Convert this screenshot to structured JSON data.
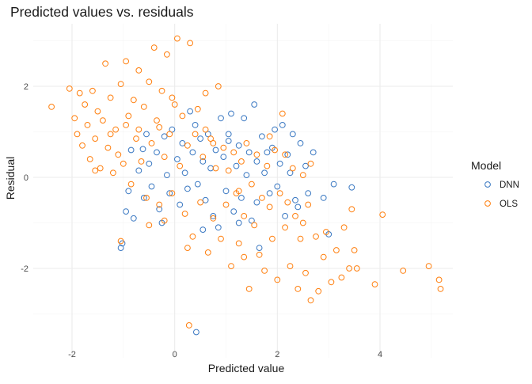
{
  "chart_data": {
    "type": "scatter",
    "title": "Predicted values vs. residuals",
    "xlabel": "Predicted value",
    "ylabel": "Residual",
    "xlim": [
      -2.6,
      5.5
    ],
    "ylim": [
      -3.5,
      3.2
    ],
    "xticks": [
      -2,
      0,
      2,
      4
    ],
    "yticks": [
      -2,
      0,
      2
    ],
    "grid": true,
    "legend": {
      "title": "Model",
      "position": "right"
    },
    "series": [
      {
        "name": "DNN",
        "color": "#3a78c2",
        "points": [
          [
            -1.05,
            -1.55
          ],
          [
            -1.02,
            -1.45
          ],
          [
            -0.95,
            -0.75
          ],
          [
            -0.9,
            -0.3
          ],
          [
            -0.85,
            0.6
          ],
          [
            -0.8,
            -0.9
          ],
          [
            -0.7,
            0.15
          ],
          [
            -0.6,
            -0.45
          ],
          [
            -0.55,
            0.95
          ],
          [
            -0.5,
            0.3
          ],
          [
            -0.45,
            -0.2
          ],
          [
            -0.35,
            0.55
          ],
          [
            -0.3,
            -0.7
          ],
          [
            -0.2,
            0.9
          ],
          [
            -0.15,
            0.05
          ],
          [
            -0.1,
            -0.35
          ],
          [
            -0.05,
            1.05
          ],
          [
            0.05,
            0.4
          ],
          [
            0.1,
            -0.6
          ],
          [
            0.15,
            0.75
          ],
          [
            0.2,
            0.1
          ],
          [
            0.25,
            -0.25
          ],
          [
            0.3,
            1.45
          ],
          [
            0.35,
            0.55
          ],
          [
            0.4,
            1.15
          ],
          [
            0.45,
            -0.15
          ],
          [
            0.5,
            0.85
          ],
          [
            0.55,
            0.35
          ],
          [
            0.6,
            -0.5
          ],
          [
            0.65,
            0.95
          ],
          [
            0.7,
            0.2
          ],
          [
            0.75,
            -0.85
          ],
          [
            0.8,
            0.6
          ],
          [
            0.85,
            -1.1
          ],
          [
            0.9,
            1.3
          ],
          [
            0.95,
            0.45
          ],
          [
            1.0,
            -0.3
          ],
          [
            1.05,
            0.8
          ],
          [
            1.1,
            1.4
          ],
          [
            1.15,
            -0.75
          ],
          [
            1.2,
            0.25
          ],
          [
            1.25,
            0.7
          ],
          [
            1.3,
            -0.45
          ],
          [
            1.35,
            1.3
          ],
          [
            1.4,
            0.05
          ],
          [
            1.45,
            0.55
          ],
          [
            1.5,
            -0.95
          ],
          [
            1.55,
            1.6
          ],
          [
            1.6,
            0.35
          ],
          [
            1.65,
            -1.55
          ],
          [
            1.7,
            0.9
          ],
          [
            1.75,
            0.1
          ],
          [
            1.8,
            0.55
          ],
          [
            1.85,
            -0.35
          ],
          [
            1.9,
            0.65
          ],
          [
            1.95,
            1.05
          ],
          [
            2.0,
            -0.2
          ],
          [
            2.05,
            0.3
          ],
          [
            2.1,
            1.15
          ],
          [
            2.15,
            -0.85
          ],
          [
            2.2,
            0.5
          ],
          [
            2.25,
            0.1
          ],
          [
            2.3,
            0.95
          ],
          [
            2.35,
            -0.5
          ],
          [
            2.45,
            0.75
          ],
          [
            2.55,
            0.25
          ],
          [
            2.6,
            -0.35
          ],
          [
            2.7,
            0.55
          ],
          [
            2.9,
            -0.45
          ],
          [
            3.0,
            -1.25
          ],
          [
            3.1,
            -0.15
          ],
          [
            3.45,
            -0.22
          ],
          [
            2.4,
            -0.65
          ],
          [
            1.25,
            -1.0
          ],
          [
            0.55,
            -1.15
          ],
          [
            0.42,
            -3.4
          ],
          [
            -0.25,
            -1.0
          ],
          [
            -0.62,
            0.62
          ],
          [
            1.05,
            0.95
          ],
          [
            1.6,
            -0.55
          ]
        ]
      },
      {
        "name": "OLS",
        "color": "#ff7f0e",
        "points": [
          [
            -2.4,
            1.55
          ],
          [
            -2.05,
            1.95
          ],
          [
            -1.95,
            1.3
          ],
          [
            -1.9,
            0.95
          ],
          [
            -1.85,
            1.85
          ],
          [
            -1.8,
            0.7
          ],
          [
            -1.75,
            1.6
          ],
          [
            -1.7,
            1.15
          ],
          [
            -1.65,
            0.4
          ],
          [
            -1.6,
            1.9
          ],
          [
            -1.55,
            0.85
          ],
          [
            -1.5,
            1.45
          ],
          [
            -1.45,
            0.2
          ],
          [
            -1.4,
            1.25
          ],
          [
            -1.35,
            2.5
          ],
          [
            -1.3,
            0.65
          ],
          [
            -1.25,
            1.75
          ],
          [
            -1.2,
            0.1
          ],
          [
            -1.15,
            1.05
          ],
          [
            -1.1,
            0.5
          ],
          [
            -1.05,
            2.05
          ],
          [
            -1.0,
            0.3
          ],
          [
            -0.95,
            2.55
          ],
          [
            -0.9,
            1.35
          ],
          [
            -0.85,
            -0.15
          ],
          [
            -0.8,
            1.7
          ],
          [
            -0.75,
            0.85
          ],
          [
            -0.7,
            2.35
          ],
          [
            -0.65,
            0.35
          ],
          [
            -0.6,
            1.55
          ],
          [
            -0.55,
            -0.45
          ],
          [
            -0.5,
            2.1
          ],
          [
            -0.45,
            0.75
          ],
          [
            -0.4,
            2.85
          ],
          [
            -0.35,
            1.25
          ],
          [
            -0.3,
            -0.6
          ],
          [
            -0.25,
            1.9
          ],
          [
            -0.2,
            0.45
          ],
          [
            -0.15,
            2.7
          ],
          [
            -0.1,
            0.95
          ],
          [
            -0.05,
            -0.35
          ],
          [
            0.0,
            1.6
          ],
          [
            0.05,
            3.05
          ],
          [
            0.1,
            0.25
          ],
          [
            0.15,
            1.35
          ],
          [
            0.2,
            -0.8
          ],
          [
            0.25,
            0.7
          ],
          [
            0.3,
            2.95
          ],
          [
            0.35,
            -1.3
          ],
          [
            0.4,
            0.95
          ],
          [
            0.45,
            1.5
          ],
          [
            0.5,
            -0.55
          ],
          [
            0.55,
            0.45
          ],
          [
            0.6,
            1.85
          ],
          [
            0.65,
            -1.65
          ],
          [
            0.7,
            0.85
          ],
          [
            0.75,
            -0.9
          ],
          [
            0.8,
            0.2
          ],
          [
            0.85,
            2.0
          ],
          [
            0.9,
            -1.35
          ],
          [
            0.95,
            0.65
          ],
          [
            1.0,
            -0.6
          ],
          [
            1.05,
            0.15
          ],
          [
            1.1,
            -1.95
          ],
          [
            1.15,
            0.55
          ],
          [
            1.2,
            -0.35
          ],
          [
            1.25,
            -1.45
          ],
          [
            1.3,
            0.35
          ],
          [
            1.35,
            -0.85
          ],
          [
            1.4,
            0.75
          ],
          [
            1.45,
            -2.45
          ],
          [
            1.5,
            -0.15
          ],
          [
            1.55,
            -1.05
          ],
          [
            1.6,
            0.5
          ],
          [
            1.65,
            -1.7
          ],
          [
            1.7,
            -0.45
          ],
          [
            1.75,
            -2.05
          ],
          [
            1.8,
            0.25
          ],
          [
            1.85,
            -0.65
          ],
          [
            1.9,
            -1.35
          ],
          [
            1.95,
            0.6
          ],
          [
            2.0,
            -2.25
          ],
          [
            2.05,
            -0.35
          ],
          [
            2.1,
            1.4
          ],
          [
            2.15,
            -1.1
          ],
          [
            2.2,
            -0.55
          ],
          [
            2.25,
            -1.95
          ],
          [
            2.3,
            0.2
          ],
          [
            2.35,
            -0.85
          ],
          [
            2.4,
            -2.45
          ],
          [
            2.45,
            -1.35
          ],
          [
            2.5,
            0.05
          ],
          [
            2.55,
            -2.1
          ],
          [
            2.6,
            -0.6
          ],
          [
            2.65,
            -2.7
          ],
          [
            2.75,
            -1.3
          ],
          [
            2.8,
            -2.5
          ],
          [
            2.9,
            -1.75
          ],
          [
            2.95,
            -1.2
          ],
          [
            3.05,
            -2.3
          ],
          [
            3.15,
            -1.6
          ],
          [
            3.25,
            -2.2
          ],
          [
            3.3,
            -1.1
          ],
          [
            3.4,
            -2.0
          ],
          [
            3.45,
            -0.7
          ],
          [
            3.5,
            -1.6
          ],
          [
            3.55,
            -2.0
          ],
          [
            3.9,
            -2.35
          ],
          [
            4.05,
            -0.82
          ],
          [
            4.45,
            -2.05
          ],
          [
            4.95,
            -1.95
          ],
          [
            5.15,
            -2.25
          ],
          [
            5.18,
            -2.45
          ],
          [
            0.28,
            -3.25
          ],
          [
            -1.05,
            -1.4
          ],
          [
            -0.5,
            -1.05
          ],
          [
            -0.2,
            -0.95
          ],
          [
            0.75,
            0.75
          ],
          [
            1.25,
            -0.3
          ],
          [
            -1.55,
            0.15
          ],
          [
            -1.25,
            0.95
          ],
          [
            -0.95,
            1.15
          ],
          [
            -0.7,
            1.05
          ],
          [
            -0.3,
            1.1
          ],
          [
            -0.05,
            1.75
          ],
          [
            0.6,
            1.05
          ],
          [
            0.25,
            -1.55
          ],
          [
            1.35,
            -1.75
          ],
          [
            1.85,
            0.9
          ],
          [
            2.15,
            0.5
          ],
          [
            2.5,
            -1.0
          ],
          [
            2.65,
            0.3
          ]
        ]
      }
    ]
  }
}
